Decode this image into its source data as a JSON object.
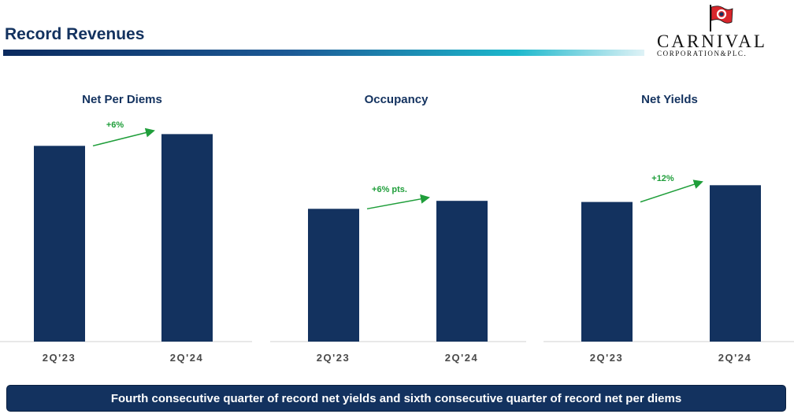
{
  "header": {
    "title": "Record Revenues"
  },
  "logo": {
    "name": "CARNIVAL",
    "subtitle": "CORPORATION&PLC."
  },
  "colors": {
    "bar": "#13325f",
    "arrow": "#1f9e3a",
    "axis": "#d0d0d0",
    "tick": "#4a4a4a",
    "flag_red": "#d8262c"
  },
  "chart_data": [
    {
      "type": "bar",
      "title": "Net Per Diems",
      "categories": [
        "2Q'23",
        "2Q'24"
      ],
      "values": [
        100,
        106
      ],
      "annotation": "+6%",
      "ylim": [
        0,
        115
      ]
    },
    {
      "type": "bar",
      "title": "Occupancy",
      "categories": [
        "2Q'23",
        "2Q'24"
      ],
      "values": [
        100,
        106
      ],
      "annotation": "+6% pts.",
      "ylim": [
        0,
        115
      ]
    },
    {
      "type": "bar",
      "title": "Net Yields",
      "categories": [
        "2Q'23",
        "2Q'24"
      ],
      "values": [
        100,
        112
      ],
      "annotation": "+12%",
      "ylim": [
        0,
        115
      ]
    }
  ],
  "footer": {
    "banner": "Fourth consecutive quarter of record net yields and sixth consecutive quarter of record net per diems"
  }
}
